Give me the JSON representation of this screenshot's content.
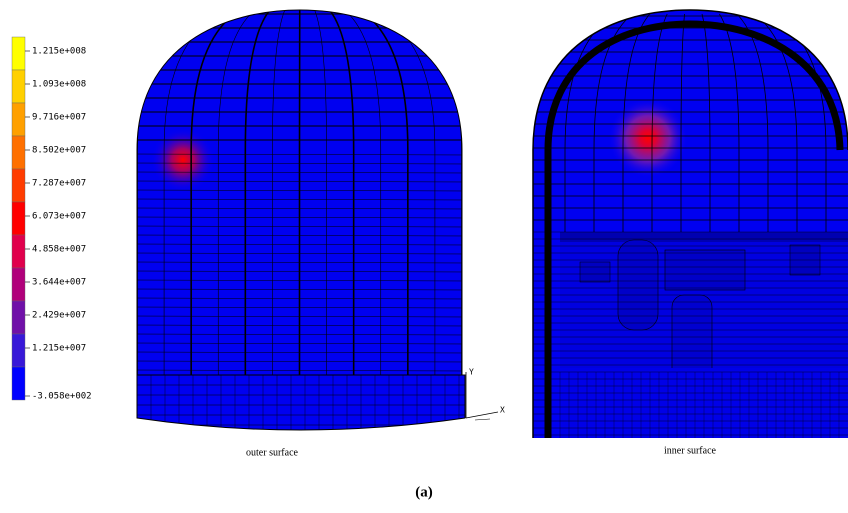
{
  "legend": {
    "labels": [
      "1.215e+008",
      "1.093e+008",
      "9.716e+007",
      "8.502e+007",
      "7.287e+007",
      "6.073e+007",
      "4.858e+007",
      "3.644e+007",
      "2.429e+007",
      "1.215e+007",
      "-3.058e+002"
    ],
    "colors": [
      "#ffff00",
      "#ffd000",
      "#ffa000",
      "#ff7000",
      "#ff3c00",
      "#ff0000",
      "#e0004c",
      "#b0007a",
      "#7010a8",
      "#3818d8",
      "#0000ff"
    ]
  },
  "captions": {
    "outer": "outer surface",
    "inner": "inner surface",
    "panel": "(a)"
  },
  "axes": {
    "y": "Y",
    "x": "X"
  }
}
